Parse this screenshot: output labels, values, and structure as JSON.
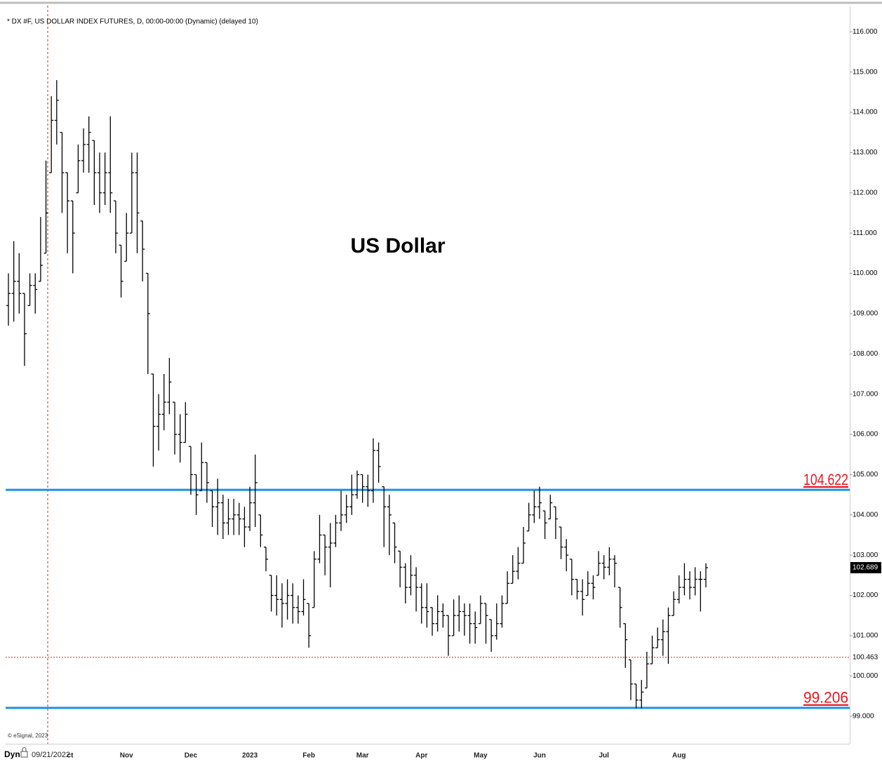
{
  "chart_data": {
    "type": "ohlc",
    "title": "US Dollar",
    "header": "* DX #F, US DOLLAR INDEX FUTURES, D, 00:00-00:00 (Dynamic) (delayed 10)",
    "copyright": "© eSignal, 2023",
    "mode": "Dyn",
    "crosshair_date": "09/21/2022",
    "crosshair_price": 100.463,
    "last_price": 102.689,
    "levels": [
      {
        "value": 104.622,
        "color": "#1e90e6"
      },
      {
        "value": 99.206,
        "color": "#1e90e6"
      }
    ],
    "bar_color": "#000000",
    "categories": [
      null,
      null,
      null,
      null,
      null,
      null,
      null,
      null,
      null,
      null,
      null,
      "Oct",
      null,
      null,
      null,
      null,
      null,
      null,
      null,
      null,
      null,
      null,
      "Nov",
      null,
      null,
      null,
      null,
      null,
      null,
      null,
      null,
      null,
      null,
      null,
      "Dec",
      null,
      null,
      null,
      null,
      null,
      null,
      null,
      null,
      null,
      null,
      "2023",
      null,
      null,
      null,
      null,
      null,
      null,
      null,
      null,
      null,
      null,
      "Feb",
      null,
      null,
      null,
      null,
      null,
      null,
      null,
      null,
      null,
      "Mar",
      null,
      null,
      null,
      null,
      null,
      null,
      null,
      null,
      null,
      null,
      "Apr",
      null,
      null,
      null,
      null,
      null,
      null,
      null,
      null,
      null,
      null,
      "May",
      null,
      null,
      null,
      null,
      null,
      null,
      null,
      null,
      null,
      null,
      "Jun",
      null,
      null,
      null,
      null,
      null,
      null,
      null,
      null,
      null,
      null,
      null,
      "Jul",
      null,
      null,
      null,
      null,
      null,
      null,
      null,
      null,
      null,
      null,
      null,
      null,
      null,
      "Aug",
      null,
      null,
      null,
      null,
      null
    ],
    "open": [
      109.2,
      109.5,
      109.8,
      109.5,
      109.2,
      109.7,
      109.8,
      110.5,
      112.5,
      113.8,
      113.5,
      112.5,
      111.8,
      112,
      112.8,
      113.2,
      113.3,
      112.5,
      112,
      112.5,
      111.8,
      110.7,
      110.3,
      111,
      112.5,
      111.3,
      110,
      107.5,
      106.2,
      106.5,
      106.8,
      106.8,
      106,
      105.8,
      105.7,
      105,
      104.6,
      105.3,
      104.6,
      104.2,
      104.3,
      103.8,
      103.9,
      104,
      103.9,
      103.7,
      104.3,
      104,
      103.2,
      102.5,
      102,
      101.9,
      101.8,
      102,
      101.7,
      101.6,
      101.8,
      101.7,
      102.9,
      103.5,
      103.2,
      103.3,
      103.8,
      104,
      104.2,
      104.5,
      105,
      104.7,
      104.6,
      105.6,
      104.7,
      104.2,
      103.8,
      103.1,
      102.7,
      102.2,
      102.5,
      102.2,
      101.7,
      101.7,
      101.3,
      101.6,
      101.5,
      101,
      101.5,
      101.6,
      101.5,
      101.3,
      101.3,
      101.8,
      101.4,
      101,
      101.3,
      101.8,
      102.3,
      102.6,
      102.8,
      103.6,
      104,
      104.2,
      104.1,
      103.9,
      104.2,
      103.7,
      103.2,
      102.9,
      102.4,
      102.1,
      102,
      102.3,
      102.5,
      102.8,
      102.7,
      102.9,
      102.2,
      101.3,
      100.4,
      99.8,
      99.4,
      99.7,
      100.3,
      100.7,
      100.9,
      101.1,
      101.5,
      101.9,
      102.2,
      102.4,
      102.2,
      102.4,
      102.4
    ],
    "high": [
      110,
      110.8,
      110.5,
      109.5,
      110,
      110,
      111.4,
      112.8,
      114.4,
      114.8,
      113.5,
      112.5,
      111.8,
      113.2,
      113.6,
      113.9,
      113.3,
      113,
      113,
      113.9,
      111.8,
      110.7,
      111.5,
      113,
      113,
      111.3,
      110,
      107.5,
      107,
      107.5,
      107.9,
      106.8,
      106.5,
      106.8,
      105.7,
      105,
      105.8,
      105.3,
      104.6,
      104.9,
      104.5,
      104.4,
      104.4,
      104.3,
      104.2,
      104.7,
      105.5,
      104,
      103.2,
      102.5,
      102.5,
      102.3,
      102.4,
      102.3,
      102,
      102.4,
      101.8,
      103.1,
      104,
      103.5,
      103.8,
      104,
      104.6,
      104.5,
      105,
      105.1,
      105,
      105,
      105.9,
      105.8,
      104.7,
      104.5,
      103.8,
      103.1,
      102.8,
      103,
      102.7,
      102.3,
      102.3,
      101.7,
      102,
      101.8,
      101.5,
      101.9,
      102,
      101.8,
      101.8,
      101.6,
      102,
      101.8,
      101.4,
      101.8,
      102,
      102.6,
      103,
      103.2,
      103.7,
      104.3,
      104.6,
      104.7,
      104.1,
      104.5,
      104.2,
      103.7,
      103.4,
      102.9,
      102.4,
      102.4,
      102.6,
      102.5,
      103.1,
      103,
      103.2,
      103,
      102.2,
      101.3,
      100.4,
      99.8,
      99.9,
      100.6,
      101,
      101.2,
      101.4,
      101.7,
      102.1,
      102.5,
      102.8,
      102.6,
      102.7,
      102.6,
      102.8
    ],
    "low": [
      108.7,
      108.8,
      109,
      107.7,
      109.2,
      109,
      109.8,
      110.5,
      112.5,
      113.2,
      111.5,
      110.5,
      110,
      112,
      112.5,
      112.5,
      111.7,
      111.5,
      111.7,
      111.5,
      110.5,
      109.4,
      110.3,
      111,
      110.5,
      109.8,
      107.5,
      105.2,
      105.6,
      106.1,
      106.5,
      105.5,
      105.3,
      105.8,
      104.5,
      104,
      104.6,
      104.3,
      103.7,
      103.5,
      103.4,
      103.5,
      103.5,
      103.5,
      103.2,
      103.6,
      103.7,
      103.2,
      102.6,
      101.6,
      101.5,
      101.2,
      101.4,
      101.3,
      101.3,
      101.5,
      100.7,
      101.7,
      102.8,
      102.5,
      102.2,
      103.2,
      103.6,
      103.8,
      104,
      104.4,
      104.3,
      104.2,
      104.3,
      104.8,
      103.2,
      103,
      102.8,
      102.2,
      101.8,
      102,
      101.6,
      101.3,
      101.2,
      101,
      101.1,
      101.2,
      100.5,
      101,
      101.1,
      101,
      100.8,
      100.8,
      101.3,
      100.8,
      100.6,
      100.9,
      101.2,
      101.8,
      102.3,
      102.4,
      102.8,
      103.6,
      103.8,
      103.9,
      103.4,
      103.9,
      103.4,
      102.9,
      102.6,
      102,
      101.9,
      101.5,
      102,
      101.9,
      102.5,
      102.4,
      102.5,
      102.2,
      101.2,
      100.2,
      99.4,
      99.2,
      99.2,
      99.7,
      100.3,
      100.7,
      100.5,
      100.3,
      101.5,
      101.8,
      102,
      101.9,
      102,
      101.6,
      102.2
    ],
    "close": [
      109.5,
      109.8,
      109.5,
      108.5,
      109.7,
      109.6,
      110.2,
      111.5,
      113.8,
      114.3,
      112.5,
      111.8,
      111,
      112.8,
      113.2,
      113.5,
      112.5,
      112,
      112.5,
      112,
      111,
      109.8,
      111,
      112.5,
      111.5,
      110.6,
      109,
      106.2,
      106.5,
      106.8,
      107.3,
      106,
      105.8,
      106.5,
      105,
      104.5,
      105.3,
      104.8,
      104.2,
      104.3,
      103.8,
      103.9,
      104,
      103.9,
      103.7,
      104.3,
      104.8,
      103.5,
      102.9,
      102,
      101.9,
      101.8,
      102,
      101.7,
      101.6,
      101.9,
      101,
      102.9,
      103.5,
      103.2,
      103.3,
      103.8,
      104,
      104.2,
      104.5,
      105,
      104.7,
      104.6,
      105.6,
      105.2,
      104.2,
      104,
      103.2,
      102.7,
      102.2,
      102.5,
      102.2,
      101.7,
      101.6,
      101.3,
      101.6,
      101.5,
      101,
      101.5,
      101.6,
      101.5,
      101.3,
      101.2,
      101.8,
      101.5,
      101,
      101.3,
      101.8,
      102.3,
      102.6,
      102.8,
      103.3,
      104,
      104.2,
      104.3,
      103.8,
      104.3,
      103.9,
      103.2,
      103,
      102.4,
      102.1,
      101.9,
      102.3,
      102.2,
      102.8,
      102.7,
      102.9,
      102.8,
      101.7,
      100.9,
      99.8,
      99.4,
      99.6,
      100.3,
      100.7,
      100.9,
      101.1,
      101.5,
      101.9,
      102.2,
      102.4,
      102.2,
      102.4,
      102.4,
      102.689
    ],
    "ylim": [
      98.35,
      116.65
    ],
    "yticks": [
      {
        "value": 99,
        "label": "99.000"
      },
      {
        "value": 100,
        "label": "100.000"
      },
      {
        "value": 101,
        "label": "101.000"
      },
      {
        "value": 102,
        "label": "102.000"
      },
      {
        "value": 103,
        "label": "103.000"
      },
      {
        "value": 104,
        "label": "104.000"
      },
      {
        "value": 105,
        "label": "105.000"
      },
      {
        "value": 106,
        "label": "106.000"
      },
      {
        "value": 107,
        "label": "107.000"
      },
      {
        "value": 108,
        "label": "108.000"
      },
      {
        "value": 109,
        "label": "109.000"
      },
      {
        "value": 110,
        "label": "110.000"
      },
      {
        "value": 111,
        "label": "111.000"
      },
      {
        "value": 112,
        "label": "112.000"
      },
      {
        "value": 113,
        "label": "113.000"
      },
      {
        "value": 114,
        "label": "114.000"
      },
      {
        "value": 115,
        "label": "115.000"
      },
      {
        "value": 116,
        "label": "116.000"
      }
    ]
  }
}
